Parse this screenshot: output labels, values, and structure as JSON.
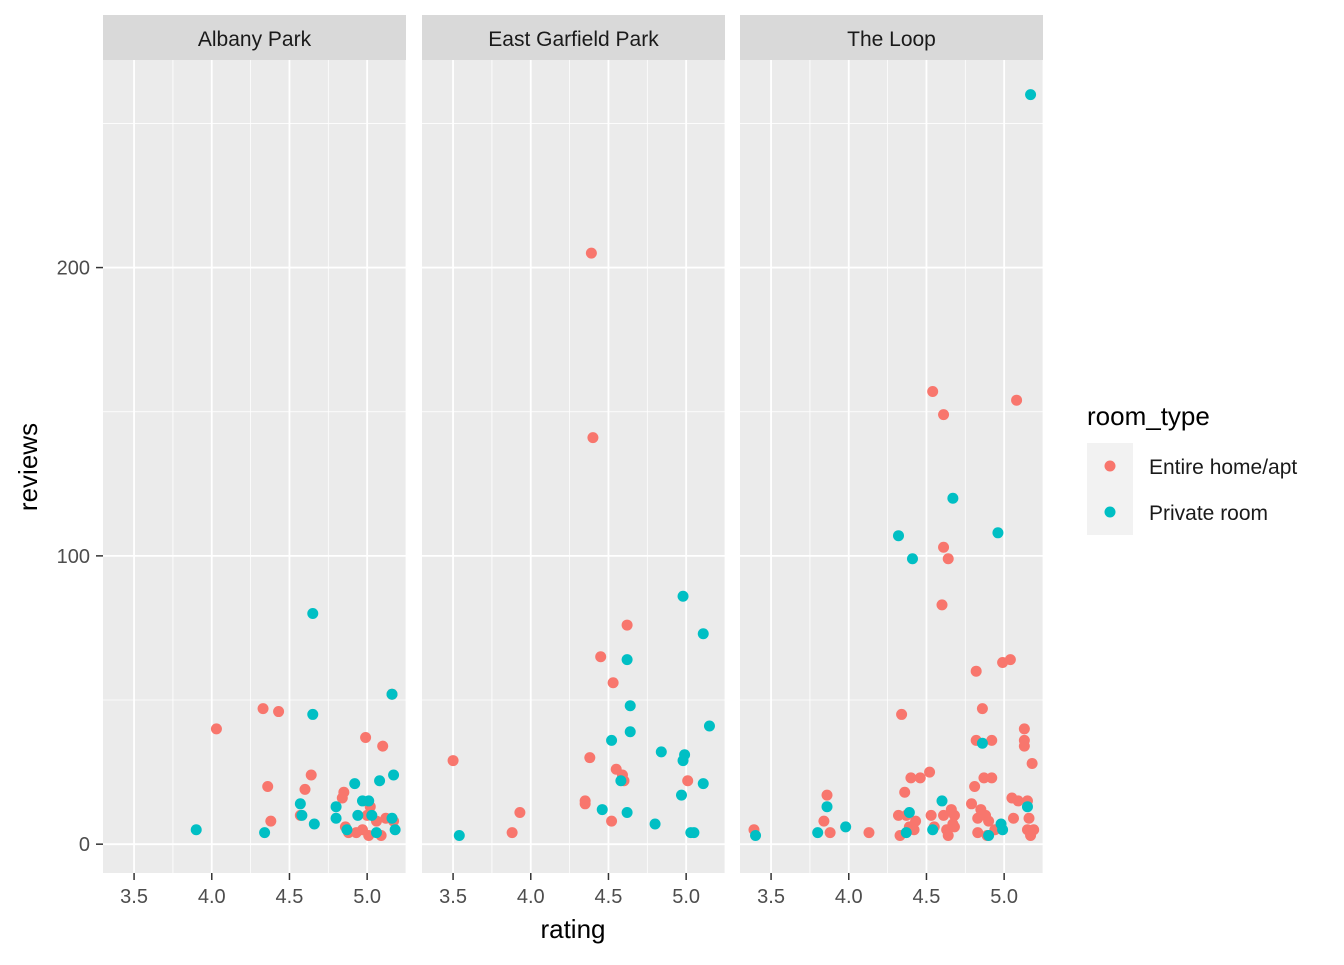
{
  "chart_data": {
    "type": "scatter",
    "facet_variable": "neighbourhood",
    "xlabel": "rating",
    "ylabel": "reviews",
    "xlim": [
      3.3,
      5.25
    ],
    "ylim": [
      -10,
      272
    ],
    "x_ticks": [
      3.5,
      4.0,
      4.5,
      5.0
    ],
    "x_tick_labels": [
      "3.5",
      "4.0",
      "4.5",
      "5.0"
    ],
    "y_ticks": [
      0,
      100,
      200
    ],
    "y_tick_labels": [
      "0",
      "100",
      "200"
    ],
    "grid": true,
    "panel_background": "#EBEBEB",
    "strip_background": "#D9D9D9",
    "legend": {
      "title": "room_type",
      "position": "right",
      "entries": [
        {
          "label": "Entire home/apt",
          "color": "#F8766D"
        },
        {
          "label": "Private room",
          "color": "#00BFC4"
        }
      ]
    },
    "panels": [
      {
        "title": "Albany Park",
        "series": [
          {
            "name": "Entire home/apt",
            "color": "#F8766D",
            "points": [
              [
                4.03,
                40
              ],
              [
                4.33,
                47
              ],
              [
                4.36,
                20
              ],
              [
                4.38,
                8
              ],
              [
                4.43,
                46
              ],
              [
                4.57,
                10
              ],
              [
                4.6,
                19
              ],
              [
                4.64,
                24
              ],
              [
                4.84,
                16
              ],
              [
                4.85,
                18
              ],
              [
                4.86,
                6
              ],
              [
                4.88,
                4
              ],
              [
                4.93,
                4
              ],
              [
                4.97,
                5
              ],
              [
                4.99,
                37
              ],
              [
                5.0,
                10
              ],
              [
                5.01,
                3
              ],
              [
                5.02,
                13
              ],
              [
                5.06,
                8
              ],
              [
                5.09,
                3
              ],
              [
                5.1,
                34
              ],
              [
                5.12,
                9
              ],
              [
                5.16,
                52
              ],
              [
                5.17,
                8
              ]
            ]
          },
          {
            "name": "Private room",
            "color": "#00BFC4",
            "points": [
              [
                3.9,
                5
              ],
              [
                4.34,
                4
              ],
              [
                4.57,
                14
              ],
              [
                4.58,
                10
              ],
              [
                4.65,
                80
              ],
              [
                4.65,
                45
              ],
              [
                4.66,
                7
              ],
              [
                4.8,
                13
              ],
              [
                4.8,
                9
              ],
              [
                4.87,
                5
              ],
              [
                4.92,
                21
              ],
              [
                4.94,
                10
              ],
              [
                4.97,
                15
              ],
              [
                5.01,
                15
              ],
              [
                5.03,
                10
              ],
              [
                5.06,
                4
              ],
              [
                5.08,
                22
              ],
              [
                5.16,
                9
              ],
              [
                5.17,
                24
              ],
              [
                5.18,
                5
              ],
              [
                5.16,
                52
              ]
            ]
          }
        ]
      },
      {
        "title": "East Garfield Park",
        "series": [
          {
            "name": "Entire home/apt",
            "color": "#F8766D",
            "points": [
              [
                3.5,
                29
              ],
              [
                3.88,
                4
              ],
              [
                3.93,
                11
              ],
              [
                4.35,
                15
              ],
              [
                4.35,
                14
              ],
              [
                4.38,
                30
              ],
              [
                4.39,
                205
              ],
              [
                4.4,
                141
              ],
              [
                4.45,
                65
              ],
              [
                4.52,
                8
              ],
              [
                4.53,
                56
              ],
              [
                4.55,
                26
              ],
              [
                4.59,
                24
              ],
              [
                4.6,
                22
              ],
              [
                4.62,
                76
              ],
              [
                5.01,
                22
              ]
            ]
          },
          {
            "name": "Private room",
            "color": "#00BFC4",
            "points": [
              [
                3.54,
                3
              ],
              [
                4.46,
                12
              ],
              [
                4.52,
                36
              ],
              [
                4.58,
                22
              ],
              [
                4.62,
                11
              ],
              [
                4.62,
                64
              ],
              [
                4.64,
                48
              ],
              [
                4.64,
                39
              ],
              [
                4.8,
                7
              ],
              [
                4.84,
                32
              ],
              [
                4.97,
                17
              ],
              [
                4.98,
                86
              ],
              [
                4.98,
                29
              ],
              [
                4.99,
                31
              ],
              [
                5.03,
                4
              ],
              [
                5.05,
                4
              ],
              [
                5.11,
                73
              ],
              [
                5.11,
                21
              ],
              [
                5.15,
                41
              ]
            ]
          }
        ]
      },
      {
        "title": "The Loop",
        "series": [
          {
            "name": "Entire home/apt",
            "color": "#F8766D",
            "points": [
              [
                3.39,
                5
              ],
              [
                3.84,
                8
              ],
              [
                3.86,
                17
              ],
              [
                3.88,
                4
              ],
              [
                4.13,
                4
              ],
              [
                4.32,
                10
              ],
              [
                4.33,
                3
              ],
              [
                4.34,
                45
              ],
              [
                4.36,
                18
              ],
              [
                4.37,
                10
              ],
              [
                4.39,
                6
              ],
              [
                4.4,
                23
              ],
              [
                4.42,
                5
              ],
              [
                4.43,
                8
              ],
              [
                4.46,
                23
              ],
              [
                4.52,
                25
              ],
              [
                4.53,
                10
              ],
              [
                4.54,
                157
              ],
              [
                4.55,
                6
              ],
              [
                4.6,
                83
              ],
              [
                4.61,
                149
              ],
              [
                4.61,
                103
              ],
              [
                4.61,
                10
              ],
              [
                4.63,
                5
              ],
              [
                4.64,
                99
              ],
              [
                4.64,
                3
              ],
              [
                4.66,
                12
              ],
              [
                4.67,
                7
              ],
              [
                4.68,
                10
              ],
              [
                4.68,
                6
              ],
              [
                4.79,
                14
              ],
              [
                4.81,
                20
              ],
              [
                4.82,
                36
              ],
              [
                4.82,
                60
              ],
              [
                4.83,
                9
              ],
              [
                4.83,
                4
              ],
              [
                4.85,
                12
              ],
              [
                4.86,
                47
              ],
              [
                4.87,
                23
              ],
              [
                4.88,
                10
              ],
              [
                4.89,
                3
              ],
              [
                4.9,
                8
              ],
              [
                4.92,
                23
              ],
              [
                4.92,
                36
              ],
              [
                4.94,
                5
              ],
              [
                4.99,
                63
              ],
              [
                5.04,
                64
              ],
              [
                5.05,
                16
              ],
              [
                5.06,
                9
              ],
              [
                5.08,
                154
              ],
              [
                5.09,
                15
              ],
              [
                5.13,
                40
              ],
              [
                5.13,
                34
              ],
              [
                5.13,
                36
              ],
              [
                5.15,
                15
              ],
              [
                5.15,
                5
              ],
              [
                5.16,
                9
              ],
              [
                5.17,
                3
              ],
              [
                5.18,
                28
              ],
              [
                5.19,
                5
              ]
            ]
          },
          {
            "name": "Private room",
            "color": "#00BFC4",
            "points": [
              [
                3.4,
                3
              ],
              [
                3.8,
                4
              ],
              [
                3.86,
                13
              ],
              [
                3.98,
                6
              ],
              [
                4.32,
                107
              ],
              [
                4.37,
                4
              ],
              [
                4.39,
                11
              ],
              [
                4.41,
                99
              ],
              [
                4.54,
                5
              ],
              [
                4.6,
                15
              ],
              [
                4.67,
                120
              ],
              [
                4.86,
                35
              ],
              [
                4.9,
                3
              ],
              [
                4.96,
                108
              ],
              [
                4.98,
                7
              ],
              [
                4.99,
                5
              ],
              [
                5.15,
                13
              ],
              [
                5.17,
                260
              ]
            ]
          }
        ]
      }
    ]
  }
}
